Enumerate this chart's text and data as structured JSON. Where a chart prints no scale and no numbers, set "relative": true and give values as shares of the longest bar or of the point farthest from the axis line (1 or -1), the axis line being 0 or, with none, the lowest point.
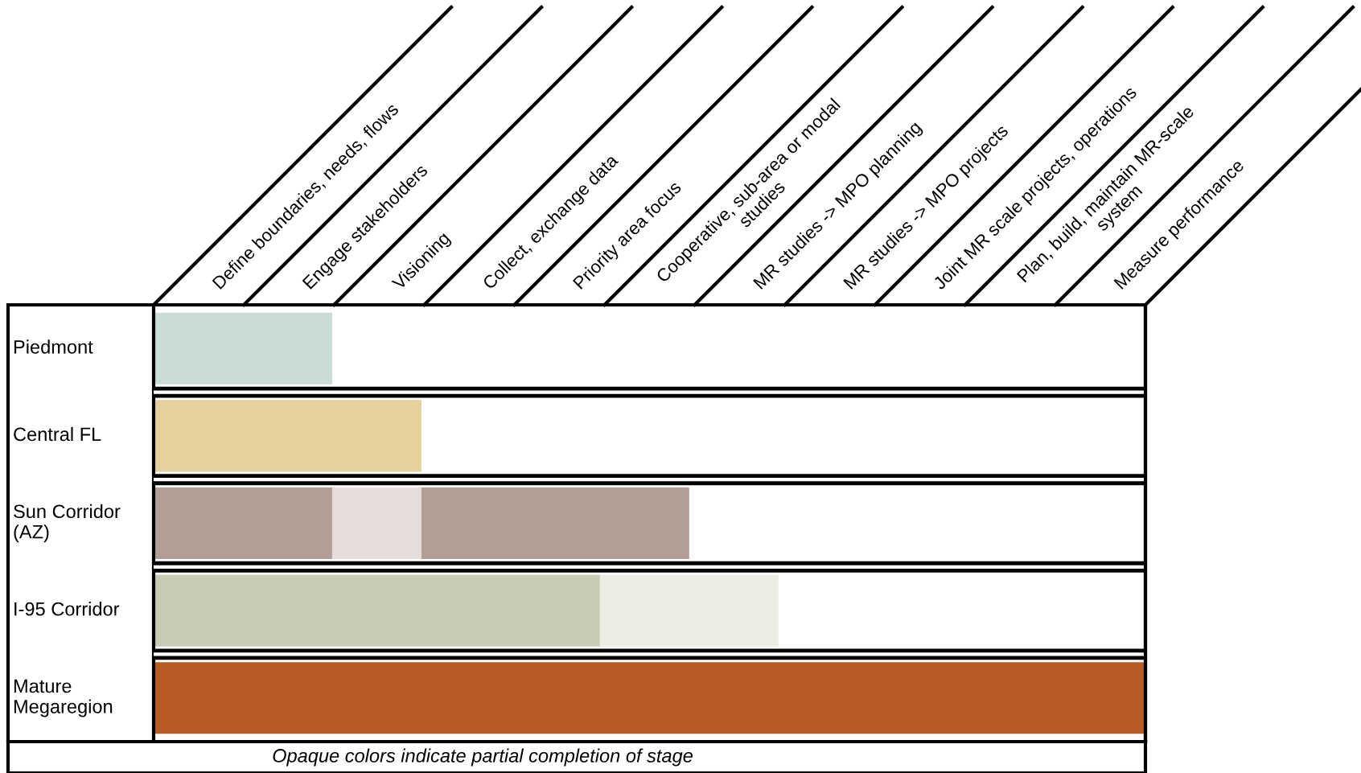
{
  "chart_data": {
    "type": "bar",
    "orientation": "horizontal",
    "stacked": true,
    "relative": true,
    "categories": [
      "Piedmont",
      "Central FL",
      "Sun Corridor\n(AZ)",
      "I-95 Corridor",
      "Mature\nMegaregion"
    ],
    "series": [
      {
        "colors": [
          "#c9dcd8",
          "#e6d09e",
          "#b39e95",
          "#c8ccb5",
          "#b85c25"
        ],
        "values": [
          0.18,
          0.27,
          0.18,
          0.45,
          1
        ]
      },
      {
        "colors": [
          null,
          null,
          "#e6dcd9",
          "#ebede5",
          null
        ],
        "values": [
          null,
          null,
          0.09,
          0.18,
          null
        ]
      },
      {
        "colors": [
          null,
          null,
          "#b39e95",
          null,
          null
        ],
        "values": [
          null,
          null,
          0.27,
          null,
          null
        ]
      }
    ],
    "annotations": [
      "Define boundaries, needs, flows",
      "Engage stakeholders",
      "Visioning",
      "Collect, exchange data",
      "Priority area focus",
      "Cooperative, sub-area or modal\nstudies",
      "MR studies -> MPO planning",
      "MR studies -> MPO projects",
      "Joint MR scale projects, operations",
      "Plan, build, maintain MR-scale\nsystem",
      "Measure performance",
      "Opaque colors indicate partial completion of stage"
    ]
  }
}
